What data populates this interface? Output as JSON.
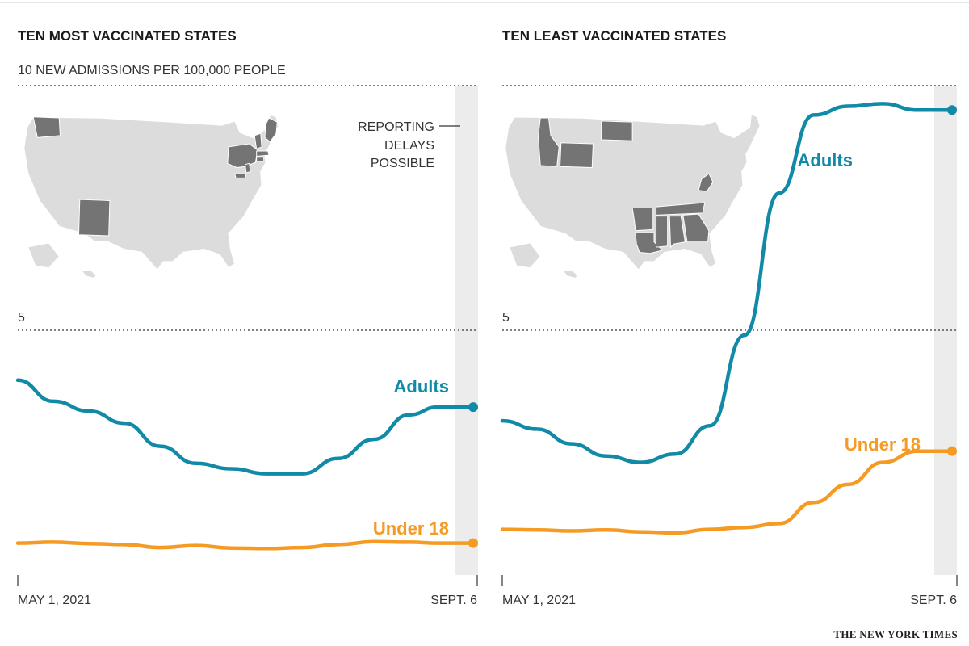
{
  "colors": {
    "adults": "#118aa8",
    "under18": "#f59a23",
    "state_gray": "#dcdcdc",
    "state_highlight": "#747474",
    "band": "#ececec"
  },
  "credit": "THE NEW YORK TIMES",
  "chart_data": [
    {
      "type": "line",
      "title": "TEN MOST VACCINATED STATES",
      "subtitle": "10 NEW ADMISSIONS PER 100,000 PEOPLE",
      "y_tick_5_label": "5",
      "ylim": [
        0,
        10
      ],
      "x_start_label": "MAY 1, 2021",
      "x_end_label": "SEPT. 6",
      "note": [
        "REPORTING",
        "DELAYS",
        "POSSIBLE"
      ],
      "map_highlight": [
        "Washington",
        "New Mexico",
        "New York",
        "Vermont",
        "Maine",
        "Massachusetts",
        "Connecticut",
        "Rhode Island",
        "New Jersey",
        "Maryland"
      ],
      "x_days": [
        0,
        10,
        20,
        30,
        40,
        50,
        60,
        70,
        80,
        90,
        100,
        110,
        118,
        128
      ],
      "series": [
        {
          "name": "Adults",
          "values": [
            3.98,
            3.55,
            3.35,
            3.1,
            2.63,
            2.28,
            2.17,
            2.07,
            2.07,
            2.38,
            2.77,
            3.27,
            3.43,
            3.43
          ]
        },
        {
          "name": "Under 18",
          "values": [
            0.65,
            0.67,
            0.64,
            0.62,
            0.56,
            0.6,
            0.55,
            0.54,
            0.56,
            0.62,
            0.68,
            0.67,
            0.65,
            0.65
          ]
        }
      ]
    },
    {
      "type": "line",
      "title": "TEN LEAST VACCINATED STATES",
      "y_tick_5_label": "5",
      "ylim": [
        0,
        10
      ],
      "x_start_label": "MAY 1, 2021",
      "x_end_label": "SEPT. 6",
      "map_highlight": [
        "Idaho",
        "Wyoming",
        "North Dakota",
        "Arkansas",
        "Louisiana",
        "Mississippi",
        "Alabama",
        "Tennessee",
        "Georgia",
        "West Virginia"
      ],
      "x_days": [
        0,
        10,
        20,
        30,
        40,
        50,
        60,
        70,
        80,
        90,
        100,
        110,
        120,
        130
      ],
      "series": [
        {
          "name": "Adults",
          "values": [
            3.15,
            2.98,
            2.68,
            2.43,
            2.3,
            2.47,
            3.05,
            4.9,
            7.8,
            9.4,
            9.58,
            9.63,
            9.5,
            9.5
          ]
        },
        {
          "name": "Under 18",
          "values": [
            0.93,
            0.92,
            0.9,
            0.92,
            0.88,
            0.86,
            0.93,
            0.97,
            1.05,
            1.48,
            1.85,
            2.3,
            2.53,
            2.53
          ]
        }
      ]
    }
  ]
}
